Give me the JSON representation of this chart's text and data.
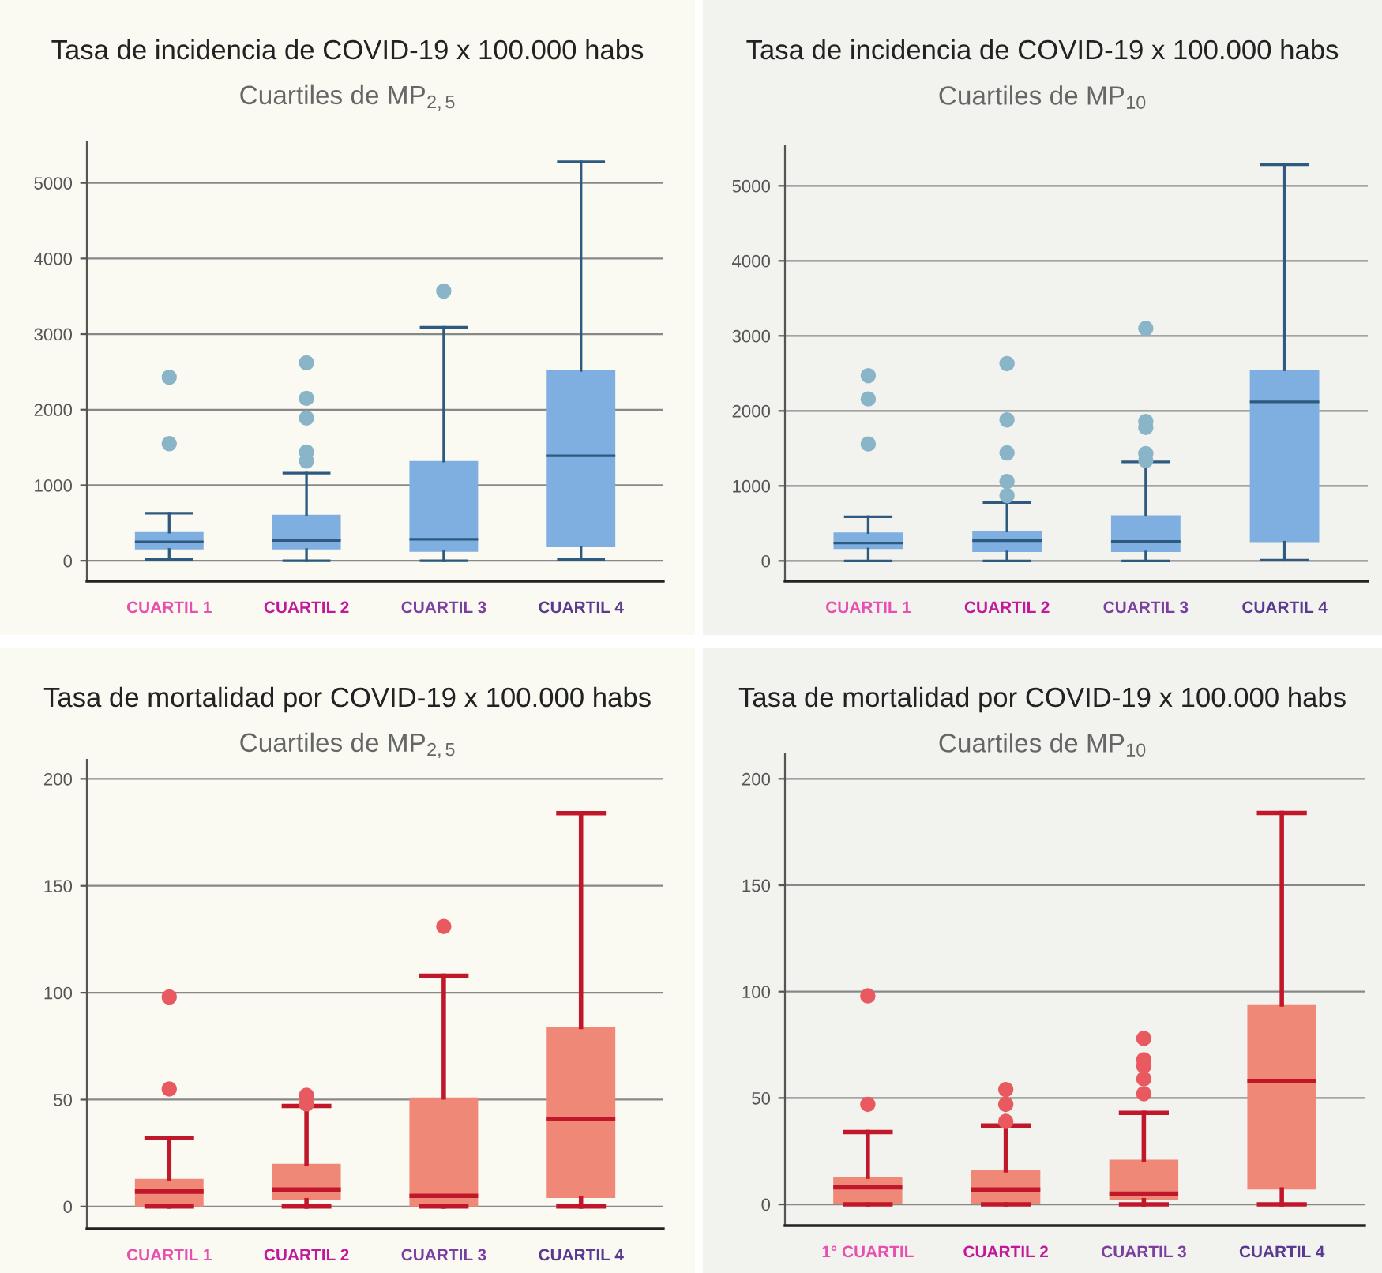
{
  "chart_data": [
    {
      "type": "box",
      "title": "Tasa de incidencia de COVID-19 x 100.000 habs",
      "subtitle": "Cuartiles de MP$_{2,5}$",
      "categories": [
        "CUARTIL 1",
        "CUARTIL 2",
        "CUARTIL 3",
        "CUARTIL 4"
      ],
      "ylim": [
        -270,
        5540
      ],
      "yticks": [
        0,
        1000,
        2000,
        3000,
        4000,
        5000
      ],
      "grid": "y",
      "series": [
        {
          "color": "#7eafe0",
          "boxes": [
            {
              "low": 15,
              "q1": 150,
              "median": 250,
              "q3": 380,
              "high": 630,
              "outliers": [
                1550,
                2430
              ]
            },
            {
              "low": 0,
              "q1": 150,
              "median": 270,
              "q3": 610,
              "high": 1160,
              "outliers": [
                1320,
                1440,
                1890,
                2150,
                2620
              ]
            },
            {
              "low": 0,
              "q1": 120,
              "median": 285,
              "q3": 1320,
              "high": 3090,
              "outliers": [
                3570
              ]
            },
            {
              "low": 15,
              "q1": 180,
              "median": 1390,
              "q3": 2520,
              "high": 5280
            }
          ]
        }
      ]
    },
    {
      "type": "box",
      "title": "Tasa de incidencia de COVID-19 x 100.000 habs",
      "subtitle": "Cuartiles de MP$_{10}$",
      "categories": [
        "CUARTIL 1",
        "CUARTIL 2",
        "CUARTIL 3",
        "CUARTIL 4"
      ],
      "ylim": [
        -270,
        5540
      ],
      "yticks": [
        0,
        1000,
        2000,
        3000,
        4000,
        5000
      ],
      "grid": "y",
      "series": [
        {
          "color": "#7eafe0",
          "boxes": [
            {
              "low": 0,
              "q1": 160,
              "median": 240,
              "q3": 380,
              "high": 590,
              "outliers": [
                1560,
                2160,
                2470
              ]
            },
            {
              "low": 0,
              "q1": 120,
              "median": 270,
              "q3": 400,
              "high": 780,
              "outliers": [
                870,
                1060,
                1440,
                1880,
                2630
              ]
            },
            {
              "low": 0,
              "q1": 120,
              "median": 260,
              "q3": 610,
              "high": 1320,
              "outliers": [
                1340,
                1430,
                1780,
                1860,
                3100
              ]
            },
            {
              "low": 10,
              "q1": 250,
              "median": 2120,
              "q3": 2550,
              "high": 5280
            }
          ]
        }
      ]
    },
    {
      "type": "box",
      "title": "Tasa de mortalidad por COVID-19 x 100.000 habs",
      "subtitle": "Cuartiles de MP$_{2,5}$",
      "categories": [
        "CUARTIL 1",
        "CUARTIL 2",
        "CUARTIL 3",
        "CUARTIL 4"
      ],
      "ylim": [
        -10.4,
        209
      ],
      "yticks": [
        0,
        50,
        100,
        150,
        200
      ],
      "grid": "y",
      "series": [
        {
          "color": "#f08878",
          "boxes": [
            {
              "low": 0,
              "q1": 0,
              "median": 7,
              "q3": 13,
              "high": 32,
              "outliers": [
                55,
                98
              ]
            },
            {
              "low": 0,
              "q1": 3,
              "median": 8,
              "q3": 20,
              "high": 47,
              "outliers": [
                48,
                52
              ]
            },
            {
              "low": 0,
              "q1": 0,
              "median": 5,
              "q3": 51,
              "high": 108,
              "outliers": [
                131
              ]
            },
            {
              "low": 0,
              "q1": 4,
              "median": 41,
              "q3": 84,
              "high": 184
            }
          ]
        }
      ]
    },
    {
      "type": "box",
      "title": "Tasa de mortalidad por COVID-19 x 100.000 habs",
      "subtitle": "Cuartiles de MP$_{10}$",
      "categories": [
        "1° CUARTIL",
        "CUARTIL 2",
        "CUARTIL 3",
        "CUARTIL 4"
      ],
      "ylim": [
        -10,
        212
      ],
      "yticks": [
        0,
        50,
        100,
        150,
        200
      ],
      "grid": "y",
      "series": [
        {
          "color": "#f08878",
          "boxes": [
            {
              "low": 0,
              "q1": 0,
              "median": 8,
              "q3": 13,
              "high": 34,
              "outliers": [
                47,
                98
              ]
            },
            {
              "low": 0,
              "q1": 0,
              "median": 7,
              "q3": 16,
              "high": 37,
              "outliers": [
                39,
                47,
                54
              ]
            },
            {
              "low": 0,
              "q1": 2,
              "median": 5,
              "q3": 21,
              "high": 43,
              "outliers": [
                52,
                59,
                65,
                68,
                78
              ]
            },
            {
              "low": 0,
              "q1": 7,
              "median": 58,
              "q3": 94,
              "high": 184
            }
          ]
        }
      ]
    }
  ]
}
